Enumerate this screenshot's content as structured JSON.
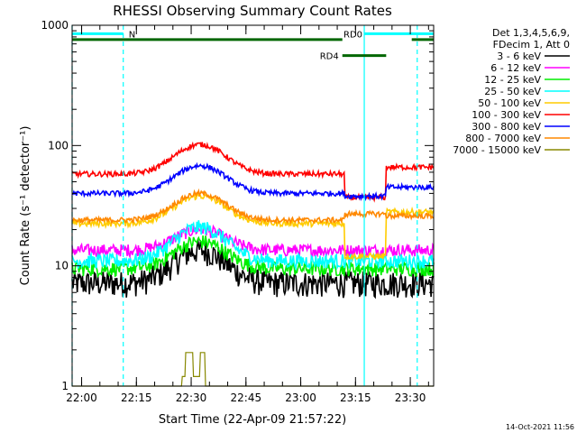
{
  "chart_data": {
    "type": "line",
    "title": "RHESSI Observing Summary Count Rates",
    "xlabel": "Start Time (22-Apr-09 21:57:22)",
    "ylabel": "Count Rate (s⁻¹ detector⁻¹)",
    "y_scale": "log",
    "ylim": [
      1,
      1000
    ],
    "x_units": "minutes after 21:57:22",
    "xlim": [
      0,
      99
    ],
    "x_ticks": [
      {
        "t": 2.6,
        "label": "22:00"
      },
      {
        "t": 17.6,
        "label": "22:15"
      },
      {
        "t": 32.6,
        "label": "22:30"
      },
      {
        "t": 47.6,
        "label": "22:45"
      },
      {
        "t": 62.6,
        "label": "23:00"
      },
      {
        "t": 77.6,
        "label": "23:15"
      },
      {
        "t": 92.6,
        "label": "23:30"
      }
    ],
    "y_ticks": [
      {
        "v": 1,
        "label": "1"
      },
      {
        "v": 10,
        "label": "10"
      },
      {
        "v": 100,
        "label": "100"
      },
      {
        "v": 1000,
        "label": "1000"
      }
    ],
    "legend_header": [
      "Det 1,3,4,5,6,9,",
      "FDecim 1, Att 0"
    ],
    "legend_placement": "right",
    "series": [
      {
        "name": "3 - 6 keV",
        "color": "#000000",
        "base": 7.2,
        "peak": 13.5,
        "noise": 0.25,
        "steps": [
          {
            "t": 86,
            "value": 7.2
          }
        ]
      },
      {
        "name": "6 - 12 keV",
        "color": "#ff00ff",
        "base": 13.5,
        "peak": 20,
        "noise": 0.12
      },
      {
        "name": "12 - 25 keV",
        "color": "#00ee00",
        "base": 9.5,
        "peak": 16,
        "noise": 0.14
      },
      {
        "name": "25 - 50 keV",
        "color": "#00ffff",
        "base": 11,
        "peak": 21,
        "noise": 0.14
      },
      {
        "name": "50 - 100 keV",
        "color": "#ffcc00",
        "base": 22.5,
        "peak": 38,
        "noise": 0.06,
        "steps": [
          {
            "t": 74.5,
            "value": 12
          },
          {
            "t": 86,
            "value": 28
          }
        ]
      },
      {
        "name": "100 - 300 keV",
        "color": "#ff0000",
        "base": 58,
        "peak": 102,
        "noise": 0.05,
        "steps": [
          {
            "t": 74.5,
            "value": 37
          },
          {
            "t": 86,
            "value": 66
          }
        ]
      },
      {
        "name": "300 - 800 keV",
        "color": "#0000ff",
        "base": 40,
        "peak": 68,
        "noise": 0.05,
        "steps": [
          {
            "t": 74.5,
            "value": 38
          },
          {
            "t": 86,
            "value": 45
          }
        ]
      },
      {
        "name": "800 - 7000 keV",
        "color": "#ff8800",
        "base": 24,
        "peak": 40,
        "noise": 0.05,
        "steps": [
          {
            "t": 74.5,
            "value": 27
          },
          {
            "t": 86,
            "value": 26
          }
        ]
      },
      {
        "name": "7000 - 15000 keV",
        "color": "#888800",
        "base": 1,
        "peak": 1.9,
        "noise": 0,
        "steps": [
          {
            "t": 41,
            "value": 1
          }
        ]
      }
    ],
    "flare_center": 35,
    "flare_width": 9,
    "annotations": [
      {
        "label": "N",
        "color": "#00ffff",
        "y": 850,
        "segments": [
          [
            0,
            14
          ]
        ]
      },
      {
        "label": "RD0",
        "color": "#00ffff",
        "y": 850,
        "segments": [
          [
            80,
            99
          ]
        ]
      },
      {
        "label": "",
        "color": "#006600",
        "y": 760,
        "segments": [
          [
            0,
            74
          ],
          [
            93,
            99
          ]
        ]
      },
      {
        "label": "RD4",
        "color": "#006600",
        "y": 560,
        "segments": [
          [
            74,
            86
          ]
        ]
      }
    ],
    "vertical_markers": [
      {
        "t": 0,
        "color": "#00ffff",
        "style": "dashed"
      },
      {
        "t": 14,
        "color": "#00ffff",
        "style": "dashed"
      },
      {
        "t": 80,
        "color": "#00ffff",
        "style": "solid"
      },
      {
        "t": 94.5,
        "color": "#00ffff",
        "style": "dashed"
      }
    ],
    "grid": false
  },
  "timestamp": "14-Oct-2021 11:56"
}
